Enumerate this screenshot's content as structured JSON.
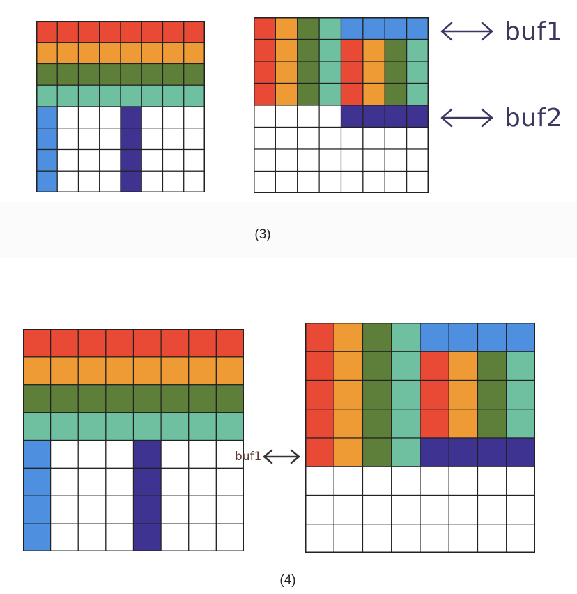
{
  "colors": {
    "R": "#e84a35",
    "O": "#ee9a35",
    "G": "#5d7f3a",
    "T": "#6fc0a0",
    "B": "#4f8fdf",
    "P": "#3e3390",
    "W": "#ffffff",
    "line": "#222222"
  },
  "captions": {
    "step3": "(3)",
    "step4": "(4)"
  },
  "labels": {
    "buf1_top": "buf1",
    "buf2_top": "buf2",
    "buf1_bottom": "buf1"
  },
  "grids": {
    "step3_left": [
      "RRRRRRRR",
      "OOOOOOOO",
      "GGGGGGGG",
      "TTTTTTTT",
      "BWWWPWWW",
      "BWWWPWWW",
      "BWWWPWWW",
      "BWWWPWWW"
    ],
    "step3_right": [
      "ROGTBBBB",
      "ROGTROGT",
      "ROGTROGT",
      "ROGTROGT",
      "WWWWPPPP",
      "WWWWWWWW",
      "WWWWWWWW",
      "WWWWWWWW"
    ],
    "step4_left": [
      "RRRRRRRR",
      "OOOOOOOO",
      "GGGGGGGG",
      "TTTTTTTT",
      "BWWWPWWW",
      "BWWWPWWW",
      "BWWWPWWW",
      "BWWWPWWW"
    ],
    "step4_right": [
      "ROGTBBBB",
      "ROGTROGT",
      "ROGTROGT",
      "ROGTROGT",
      "ROGTPPPP",
      "WWWWWWWW",
      "WWWWWWWW",
      "WWWWWWWW"
    ]
  }
}
